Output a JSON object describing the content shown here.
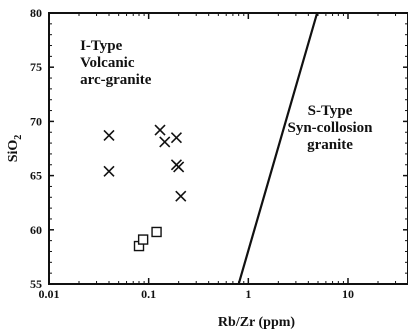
{
  "chart_data": {
    "type": "scatter",
    "xlabel": "Rb/Zr (ppm)",
    "ylabel_main": "SiO",
    "ylabel_sub": "2",
    "xscale": "log",
    "xlim": [
      0.01,
      40
    ],
    "ylim": [
      55,
      80
    ],
    "xticks": [
      0.01,
      0.1,
      1,
      10
    ],
    "xtick_labels": [
      "0.01",
      "0.1",
      "1",
      "10"
    ],
    "yticks": [
      55,
      60,
      65,
      70,
      75,
      80
    ],
    "ytick_labels": [
      "55",
      "60",
      "65",
      "70",
      "75",
      "80"
    ],
    "grid": false,
    "legend": "none",
    "series": [
      {
        "marker": "x",
        "points": [
          {
            "x": 0.04,
            "y": 68.7
          },
          {
            "x": 0.04,
            "y": 65.4
          },
          {
            "x": 0.13,
            "y": 69.2
          },
          {
            "x": 0.145,
            "y": 68.1
          },
          {
            "x": 0.19,
            "y": 68.5
          },
          {
            "x": 0.19,
            "y": 66.0
          },
          {
            "x": 0.2,
            "y": 65.8
          },
          {
            "x": 0.21,
            "y": 63.1
          }
        ]
      },
      {
        "marker": "square",
        "points": [
          {
            "x": 0.08,
            "y": 58.5
          },
          {
            "x": 0.088,
            "y": 59.1
          },
          {
            "x": 0.12,
            "y": 59.8
          }
        ]
      }
    ],
    "boundary_line": [
      {
        "x": 0.8,
        "y": 55
      },
      {
        "x": 4.9,
        "y": 80
      }
    ],
    "annotations": [
      {
        "lines": [
          "I-Type",
          "Volcanic",
          "arc-granite"
        ],
        "anchor_x": 0.0205,
        "anchor_y": 76.6
      },
      {
        "lines": [
          "S-Type",
          "Syn-collosion",
          "granite"
        ],
        "anchor_x": 6.6,
        "anchor_y": 70.6
      }
    ]
  }
}
